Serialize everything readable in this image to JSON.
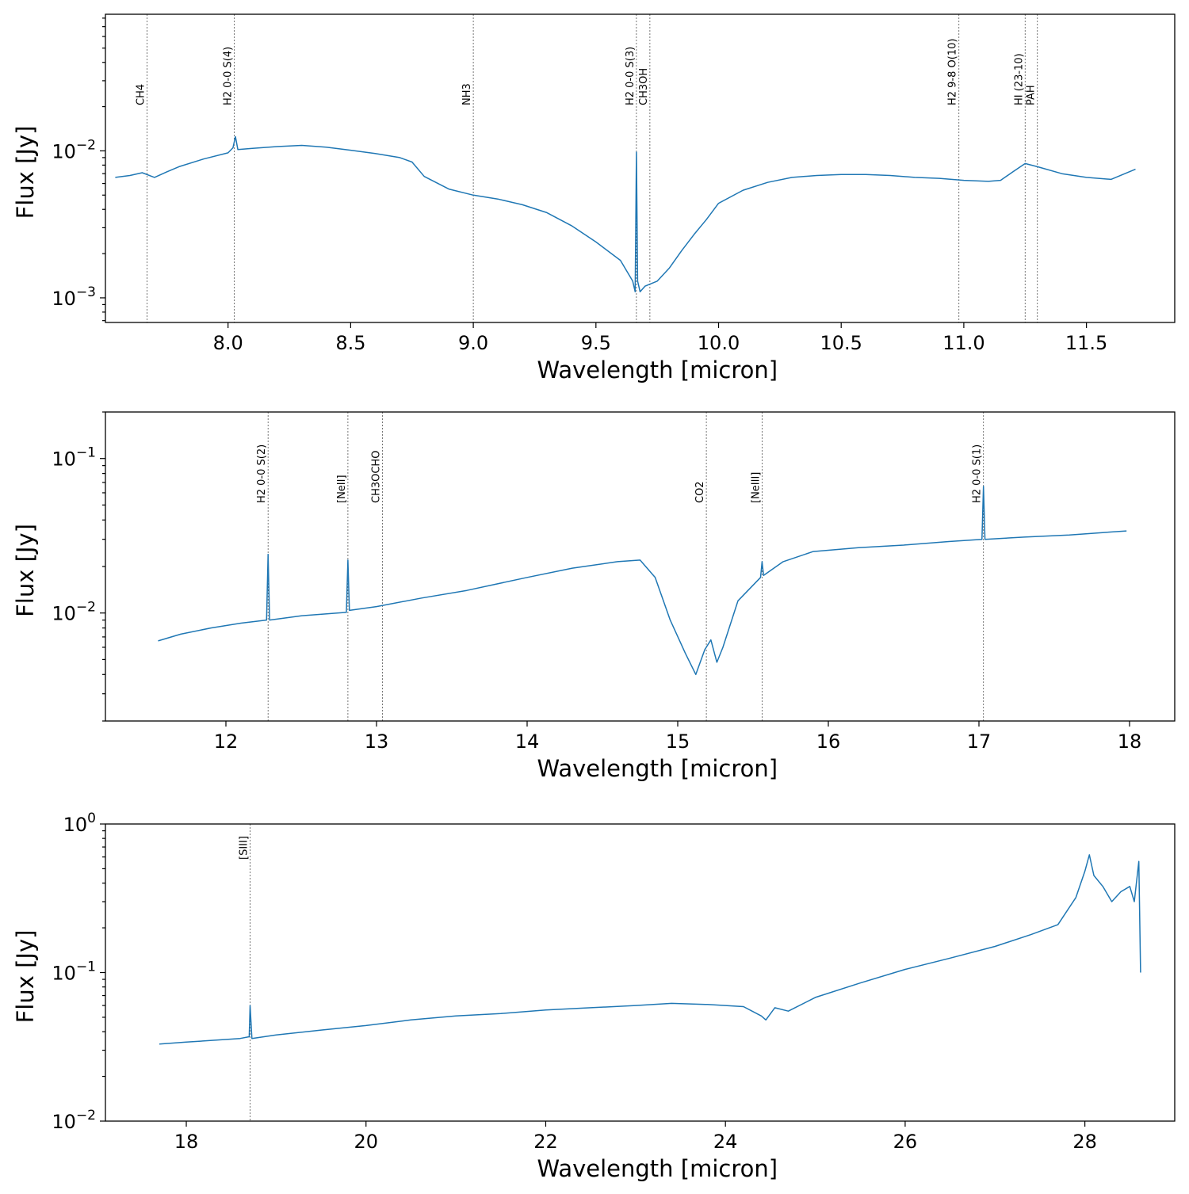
{
  "chart_data": [
    {
      "type": "line",
      "xlabel": "Wavelength [micron]",
      "ylabel": "Flux [Jy]",
      "yscale": "log",
      "xlim": [
        7.5,
        11.86
      ],
      "ylim": [
        0.00068,
        0.085
      ],
      "xticks": [
        "8.0",
        "8.5",
        "9.0",
        "9.5",
        "10.0",
        "10.5",
        "11.0",
        "11.5"
      ],
      "xtick_values": [
        8.0,
        8.5,
        9.0,
        9.5,
        10.0,
        10.5,
        11.0,
        11.5
      ],
      "yticks": [
        "10^-3",
        "10^-2"
      ],
      "ytick_values": [
        0.001,
        0.01
      ],
      "line_labels": [
        {
          "x": 7.67,
          "label": "CH4"
        },
        {
          "x": 8.025,
          "label": "H2 0-0 S(4)"
        },
        {
          "x": 9.0,
          "label": "NH3"
        },
        {
          "x": 9.665,
          "label": "H2 0-0 S(3)"
        },
        {
          "x": 9.72,
          "label": "CH3OH"
        },
        {
          "x": 10.98,
          "label": "H2 9-8 O(10)"
        },
        {
          "x": 11.25,
          "label": "HI (23-10)"
        },
        {
          "x": 11.3,
          "label": "PAH"
        }
      ],
      "series": [
        {
          "x": [
            7.54,
            7.6,
            7.65,
            7.7,
            7.75,
            7.8,
            7.9,
            8.0,
            8.02,
            8.03,
            8.04,
            8.1,
            8.2,
            8.3,
            8.4,
            8.5,
            8.6,
            8.7,
            8.75,
            8.8,
            8.9,
            9.0,
            9.1,
            9.2,
            9.3,
            9.4,
            9.5,
            9.6,
            9.65,
            9.66,
            9.665,
            9.67,
            9.68,
            9.7,
            9.75,
            9.8,
            9.85,
            9.9,
            9.95,
            10.0,
            10.1,
            10.2,
            10.3,
            10.4,
            10.5,
            10.6,
            10.7,
            10.8,
            10.9,
            11.0,
            11.1,
            11.15,
            11.2,
            11.25,
            11.3,
            11.4,
            11.5,
            11.6,
            11.7
          ],
          "y": [
            0.0066,
            0.0068,
            0.0071,
            0.0066,
            0.0072,
            0.0078,
            0.0088,
            0.0097,
            0.0105,
            0.0125,
            0.0102,
            0.0104,
            0.0107,
            0.0109,
            0.0106,
            0.0101,
            0.0096,
            0.009,
            0.0084,
            0.0067,
            0.0055,
            0.005,
            0.0047,
            0.0043,
            0.0038,
            0.0031,
            0.0024,
            0.0018,
            0.0013,
            0.0011,
            0.0098,
            0.0013,
            0.0011,
            0.0012,
            0.0013,
            0.0016,
            0.0021,
            0.0027,
            0.0034,
            0.0044,
            0.0054,
            0.0061,
            0.0066,
            0.0068,
            0.0069,
            0.0069,
            0.0068,
            0.0066,
            0.0065,
            0.0063,
            0.0062,
            0.0063,
            0.0072,
            0.0082,
            0.0078,
            0.007,
            0.0066,
            0.0064,
            0.0075
          ]
        }
      ]
    },
    {
      "type": "line",
      "xlabel": "Wavelength [micron]",
      "ylabel": "Flux [Jy]",
      "yscale": "log",
      "xlim": [
        11.2,
        18.3
      ],
      "ylim": [
        0.002,
        0.2
      ],
      "xticks": [
        "12",
        "13",
        "14",
        "15",
        "16",
        "17",
        "18"
      ],
      "xtick_values": [
        12,
        13,
        14,
        15,
        16,
        17,
        18
      ],
      "yticks": [
        "10^-2",
        "10^-1"
      ],
      "ytick_values": [
        0.01,
        0.1
      ],
      "line_labels": [
        {
          "x": 12.28,
          "label": "H2 0-0 S(2)"
        },
        {
          "x": 12.81,
          "label": "[NeII]"
        },
        {
          "x": 13.04,
          "label": "CH3OCHO"
        },
        {
          "x": 15.19,
          "label": "CO2"
        },
        {
          "x": 15.56,
          "label": "[NeIII]"
        },
        {
          "x": 17.03,
          "label": "H2 0-0 S(1)"
        }
      ],
      "series": [
        {
          "x": [
            11.55,
            11.7,
            11.9,
            12.1,
            12.27,
            12.28,
            12.29,
            12.5,
            12.8,
            12.81,
            12.82,
            13.0,
            13.3,
            13.6,
            14.0,
            14.3,
            14.6,
            14.75,
            14.85,
            14.95,
            15.05,
            15.12,
            15.18,
            15.22,
            15.26,
            15.3,
            15.4,
            15.55,
            15.56,
            15.57,
            15.7,
            15.9,
            16.2,
            16.5,
            16.8,
            17.02,
            17.03,
            17.04,
            17.3,
            17.6,
            17.98
          ],
          "y": [
            0.0066,
            0.0073,
            0.008,
            0.0086,
            0.009,
            0.024,
            0.009,
            0.0096,
            0.0101,
            0.022,
            0.0104,
            0.011,
            0.0125,
            0.014,
            0.017,
            0.0195,
            0.0215,
            0.022,
            0.017,
            0.009,
            0.0055,
            0.004,
            0.0058,
            0.0067,
            0.0048,
            0.006,
            0.012,
            0.017,
            0.0215,
            0.0175,
            0.0215,
            0.025,
            0.0265,
            0.0275,
            0.029,
            0.03,
            0.066,
            0.03,
            0.031,
            0.032,
            0.034
          ]
        }
      ]
    },
    {
      "type": "line",
      "xlabel": "Wavelength [micron]",
      "ylabel": "Flux [Jy]",
      "yscale": "log",
      "xlim": [
        17.1,
        29.0
      ],
      "ylim": [
        0.01,
        1.0
      ],
      "xticks": [
        "18",
        "20",
        "22",
        "24",
        "26",
        "28"
      ],
      "xtick_values": [
        18,
        20,
        22,
        24,
        26,
        28
      ],
      "yticks": [
        "10^-2",
        "10^-1",
        "10^0"
      ],
      "ytick_values": [
        0.01,
        0.1,
        1.0
      ],
      "line_labels": [
        {
          "x": 18.71,
          "label": "[SIII]"
        }
      ],
      "series": [
        {
          "x": [
            17.7,
            18.0,
            18.3,
            18.6,
            18.7,
            18.71,
            18.73,
            19.0,
            19.5,
            20.0,
            20.5,
            21.0,
            21.5,
            22.0,
            22.5,
            23.0,
            23.4,
            23.8,
            24.2,
            24.4,
            24.45,
            24.55,
            24.7,
            25.0,
            25.5,
            26.0,
            26.5,
            27.0,
            27.4,
            27.7,
            27.9,
            28.0,
            28.05,
            28.1,
            28.2,
            28.3,
            28.4,
            28.5,
            28.55,
            28.6,
            28.62
          ],
          "y": [
            0.033,
            0.034,
            0.035,
            0.036,
            0.037,
            0.06,
            0.036,
            0.038,
            0.041,
            0.044,
            0.048,
            0.051,
            0.053,
            0.056,
            0.058,
            0.06,
            0.062,
            0.061,
            0.059,
            0.051,
            0.048,
            0.058,
            0.055,
            0.068,
            0.085,
            0.105,
            0.125,
            0.15,
            0.18,
            0.21,
            0.32,
            0.48,
            0.62,
            0.45,
            0.38,
            0.3,
            0.35,
            0.38,
            0.3,
            0.56,
            0.1
          ]
        }
      ]
    }
  ]
}
